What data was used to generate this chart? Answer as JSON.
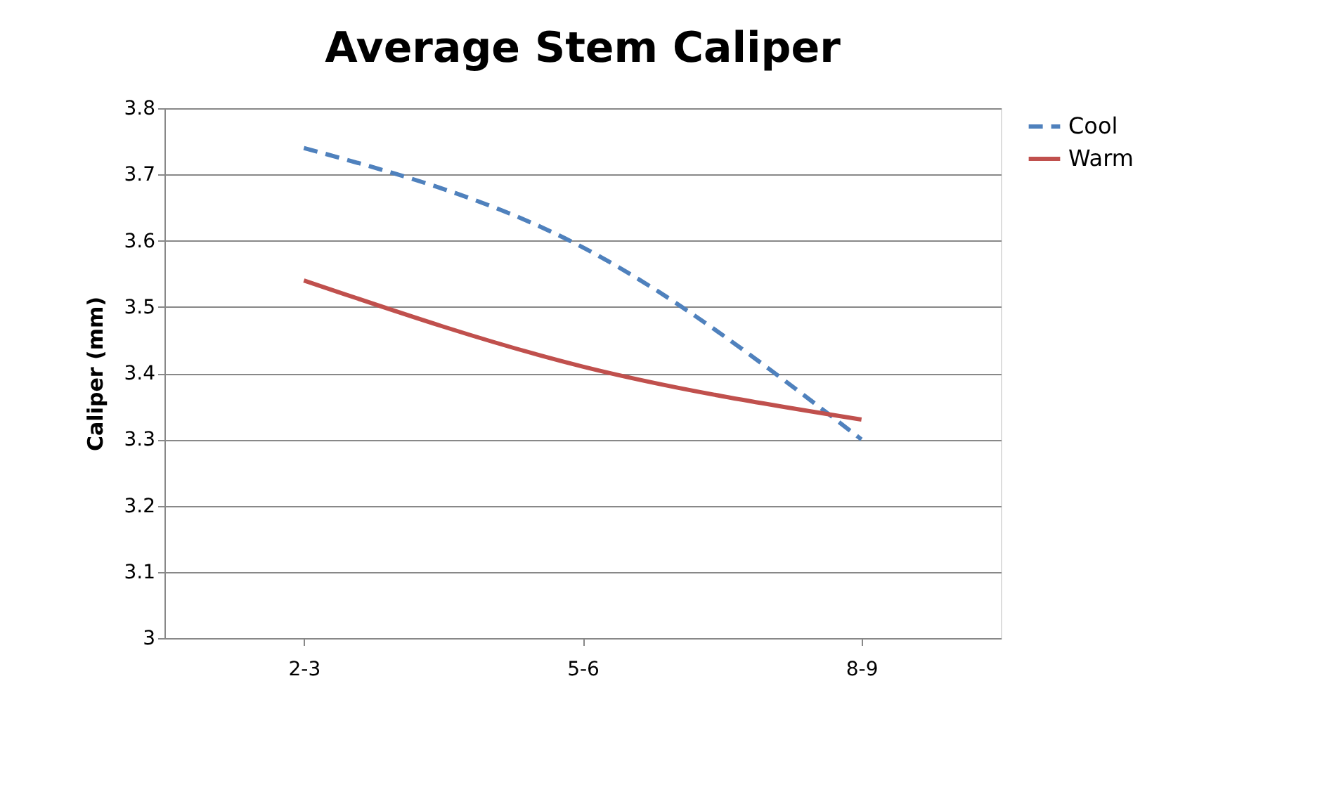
{
  "chart_data": {
    "type": "line",
    "title": "Average Stem Caliper",
    "ylabel": "Caliper (mm)",
    "categories": [
      "2-3",
      "5-6",
      "8-9"
    ],
    "series": [
      {
        "name": "Cool",
        "color": "#4f81bd",
        "line_style": "dashed",
        "values": [
          3.74,
          3.59,
          3.3
        ]
      },
      {
        "name": "Warm",
        "color": "#c0504d",
        "line_style": "solid",
        "values": [
          3.54,
          3.41,
          3.33
        ]
      }
    ],
    "ylim": [
      3,
      3.8
    ],
    "yticks": [
      3,
      3.1,
      3.2,
      3.3,
      3.4,
      3.5,
      3.6,
      3.7,
      3.8
    ],
    "grid": "y",
    "legend": "right",
    "marker": "none"
  }
}
